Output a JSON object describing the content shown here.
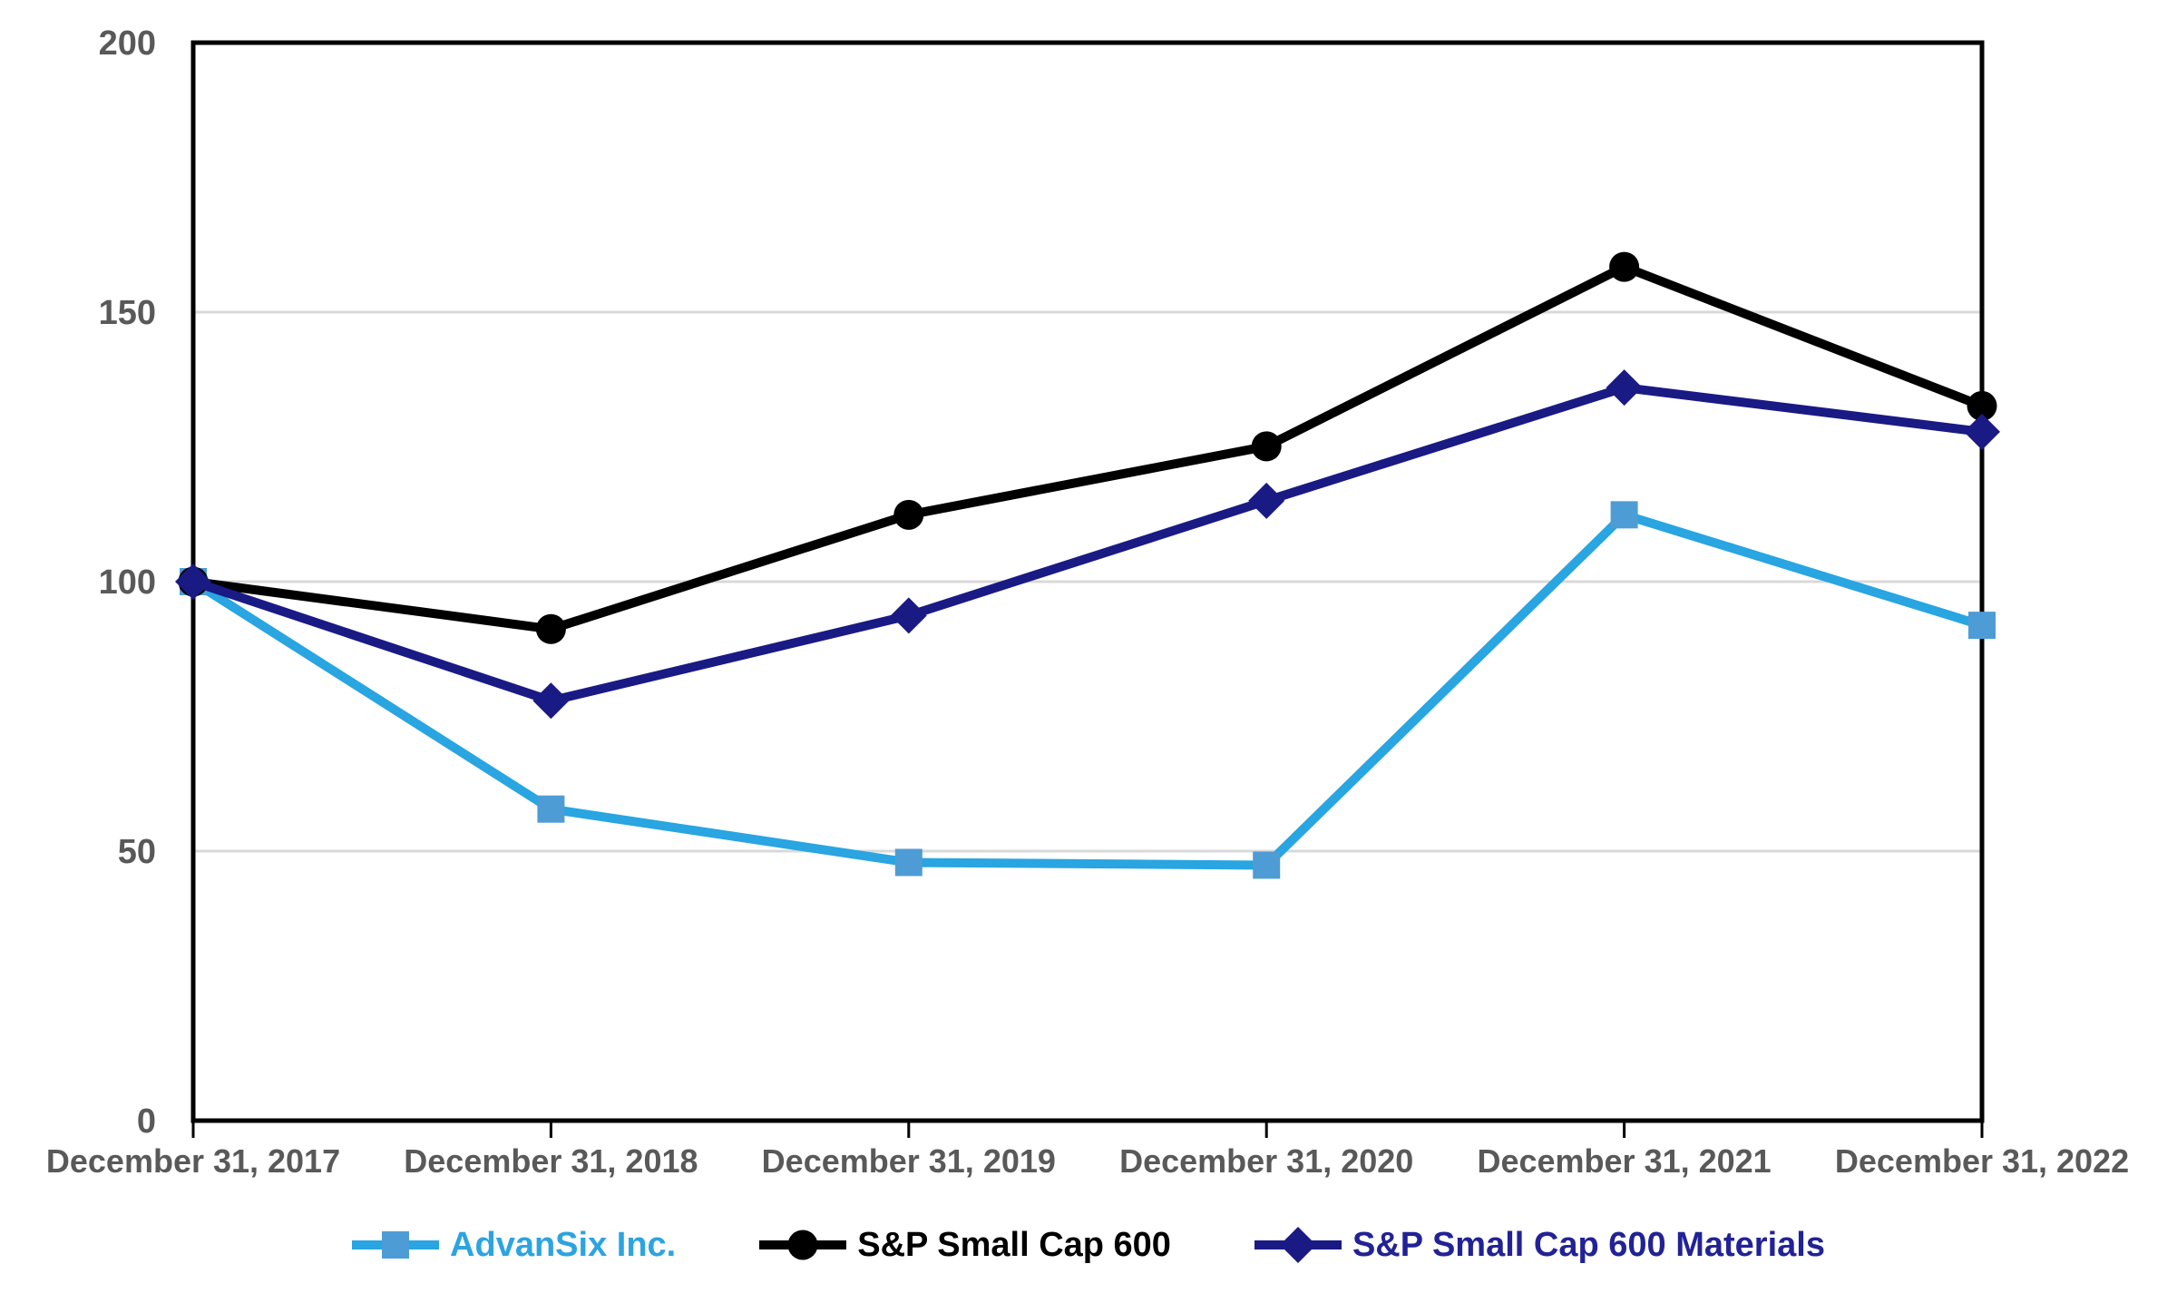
{
  "chart_data": {
    "type": "line",
    "title": "",
    "xlabel": "",
    "ylabel": "",
    "categories": [
      "December 31, 2017",
      "December 31, 2018",
      "December 31, 2019",
      "December 31, 2020",
      "December 31, 2021",
      "December 31, 2022"
    ],
    "series": [
      {
        "name": "AdvanSix Inc.",
        "values": [
          100.0,
          57.8,
          47.9,
          47.4,
          112.4,
          91.9
        ],
        "color": "#29A5E1",
        "marker": "square",
        "marker_color": "#4E9CD5",
        "label_color": "#2CA4E0"
      },
      {
        "name": "S&P Small Cap 600",
        "values": [
          100.0,
          91.2,
          112.4,
          125.1,
          158.4,
          132.6
        ],
        "color": "#000000",
        "marker": "circle",
        "marker_color": "#000000",
        "label_color": "#000000"
      },
      {
        "name": "S&P Small Cap 600 Materials",
        "values": [
          100.0,
          77.9,
          93.7,
          115.0,
          136.0,
          127.8
        ],
        "color": "#1A1A85",
        "marker": "diamond",
        "marker_color": "#1A1A85",
        "label_color": "#222297"
      }
    ],
    "ylim": [
      0,
      200
    ],
    "yticks": [
      0,
      50,
      100,
      150,
      200
    ],
    "grid": "horizontal",
    "legend_position": "bottom",
    "axis_label_color": "#595959",
    "gridline_color": "#D9D9D9",
    "axis_color": "#000000",
    "background": "#FFFFFF"
  }
}
